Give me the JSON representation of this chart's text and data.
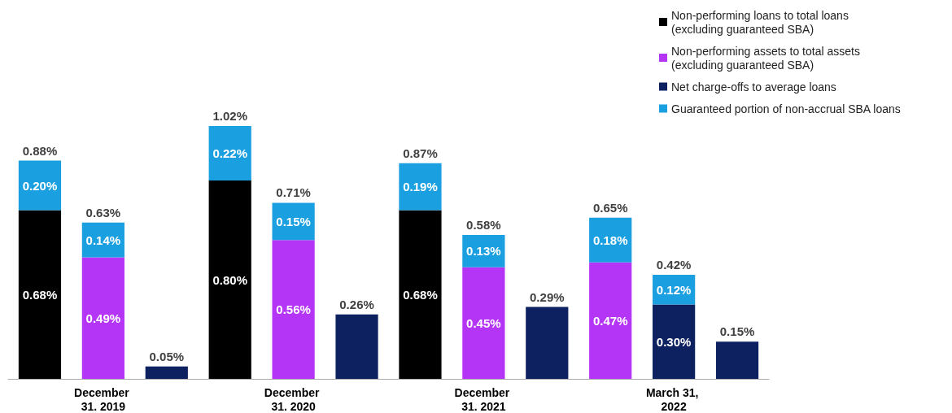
{
  "chart_data": {
    "type": "bar",
    "stacked": true,
    "legend": "top right",
    "categories": [
      null,
      "December 31. 2019",
      null,
      null,
      "December 31. 2020",
      null,
      null,
      "December 31. 2021",
      null,
      null,
      "March 31, 2022",
      null
    ],
    "series": [
      {
        "name": "Non-performing loans to total loans (excluding guaranteed SBA)",
        "color": "#000000",
        "values": [
          0.68,
          null,
          null,
          0.8,
          null,
          null,
          0.68,
          null,
          null,
          null,
          null,
          null
        ],
        "value_labels": [
          "0.68%",
          null,
          null,
          "0.80%",
          null,
          null,
          "0.68%",
          null,
          null,
          null,
          null,
          null
        ]
      },
      {
        "name": "Non-performing assets to total assets (excluding guaranteed SBA)",
        "color": "#b535f6",
        "values": [
          null,
          0.49,
          null,
          null,
          0.56,
          null,
          null,
          0.45,
          null,
          0.47,
          null,
          null
        ],
        "value_labels": [
          null,
          "0.49%",
          null,
          null,
          "0.56%",
          null,
          null,
          "0.45%",
          null,
          "0.47%",
          null,
          null
        ]
      },
      {
        "name": "Net charge-offs to average loans",
        "color": "#0d2060",
        "values": [
          null,
          null,
          0.05,
          null,
          null,
          0.26,
          null,
          null,
          0.29,
          null,
          0.3,
          0.15
        ],
        "value_labels": [
          null,
          null,
          "0.05%",
          null,
          null,
          "0.26%",
          null,
          null,
          "0.29%",
          null,
          "0.30%",
          "0.15%"
        ]
      },
      {
        "name": "Guaranteed portion of non-accrual SBA loans",
        "color": "#1a9fe0",
        "values": [
          0.2,
          0.14,
          null,
          0.22,
          0.15,
          null,
          0.19,
          0.13,
          null,
          0.18,
          0.12,
          null
        ],
        "value_labels": [
          "0.20%",
          "0.14%",
          null,
          "0.22%",
          "0.15%",
          null,
          "0.19%",
          "0.13%",
          null,
          "0.18%",
          "0.12%",
          null
        ]
      }
    ],
    "totals": [
      "0.88%",
      "0.63%",
      null,
      "1.02%",
      "0.71%",
      null,
      "0.87%",
      "0.58%",
      null,
      "0.65%",
      "0.42%",
      null
    ]
  }
}
